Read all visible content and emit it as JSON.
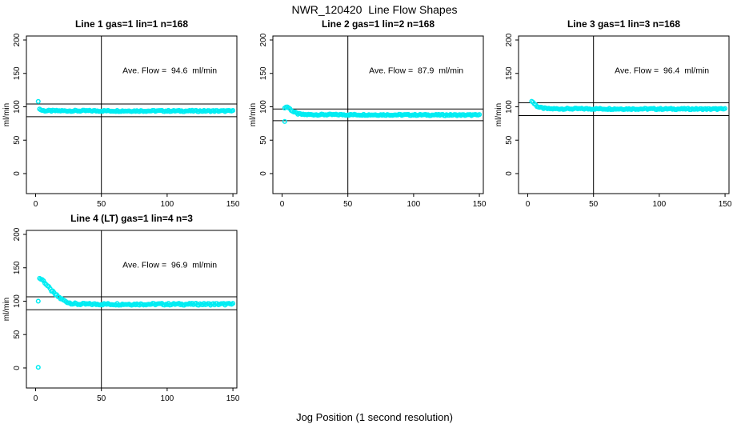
{
  "title": "NWR_120420  Line Flow Shapes",
  "xlabel": "Jog Position (1 second resolution)",
  "colors": {
    "marker": "#00ECF2",
    "axis": "#000000"
  },
  "chart_data": [
    {
      "type": "scatter",
      "title": "Line 1 gas=1 lin=1 n=168",
      "annotation": "Ave. Flow =  94.6  ml/min",
      "ave_flow_ml_min": 94.6,
      "ylabel": "ml/min",
      "xticks": [
        0,
        50,
        100,
        150
      ],
      "yticks": [
        0,
        50,
        100,
        150,
        200
      ],
      "xlim": [
        -7,
        153
      ],
      "ylim": [
        -30,
        206
      ],
      "vline_x": 50,
      "hlines": [
        104.1,
        85.1
      ],
      "outliers": [
        [
          2,
          108
        ]
      ],
      "curve": [
        [
          3,
          96.5
        ],
        [
          5,
          94.5
        ],
        [
          8,
          94
        ],
        [
          150,
          93.7
        ]
      ],
      "x_end": 150,
      "noise": 1.0
    },
    {
      "type": "scatter",
      "title": "Line 2 gas=1 lin=2 n=168",
      "annotation": "Ave. Flow =  87.9  ml/min",
      "ave_flow_ml_min": 87.9,
      "ylabel": "ml/min",
      "xticks": [
        0,
        50,
        100,
        150
      ],
      "yticks": [
        0,
        50,
        100,
        150,
        200
      ],
      "xlim": [
        -7,
        153
      ],
      "ylim": [
        -30,
        206
      ],
      "vline_x": 50,
      "hlines": [
        96.7,
        79.1
      ],
      "outliers": [
        [
          2,
          78
        ]
      ],
      "curve": [
        [
          2,
          99
        ],
        [
          4,
          100
        ],
        [
          5,
          98.5
        ],
        [
          7,
          95
        ],
        [
          9,
          92
        ],
        [
          12,
          89.5
        ],
        [
          16,
          88.3
        ],
        [
          150,
          87.6
        ]
      ],
      "x_end": 150,
      "noise": 1.0
    },
    {
      "type": "scatter",
      "title": "Line 3 gas=1 lin=3 n=168",
      "annotation": "Ave. Flow =  96.4  ml/min",
      "ave_flow_ml_min": 96.4,
      "ylabel": "ml/min",
      "xticks": [
        0,
        50,
        100,
        150
      ],
      "yticks": [
        0,
        50,
        100,
        150,
        200
      ],
      "xlim": [
        -7,
        153
      ],
      "ylim": [
        -30,
        206
      ],
      "vline_x": 50,
      "hlines": [
        106.0,
        86.8
      ],
      "outliers": [],
      "curve": [
        [
          3,
          108
        ],
        [
          4,
          107
        ],
        [
          5,
          104.5
        ],
        [
          7,
          101
        ],
        [
          9,
          99
        ],
        [
          12,
          97.8
        ],
        [
          16,
          97
        ],
        [
          150,
          96.6
        ]
      ],
      "x_end": 150,
      "noise": 1.0
    },
    {
      "type": "scatter",
      "title": "Line 4 (LT) gas=1 lin=4 n=3",
      "annotation": "Ave. Flow =  96.9  ml/min",
      "ave_flow_ml_min": 96.9,
      "ylabel": "ml/min",
      "xticks": [
        0,
        50,
        100,
        150
      ],
      "yticks": [
        0,
        50,
        100,
        150,
        200
      ],
      "xlim": [
        -7,
        153
      ],
      "ylim": [
        -30,
        206
      ],
      "vline_x": 50,
      "hlines": [
        106.6,
        87.2
      ],
      "outliers": [
        [
          2,
          100
        ],
        [
          2,
          1
        ]
      ],
      "curve": [
        [
          3,
          134
        ],
        [
          5,
          132.5
        ],
        [
          7,
          128
        ],
        [
          9,
          123
        ],
        [
          11,
          118
        ],
        [
          13,
          114
        ],
        [
          15,
          110
        ],
        [
          17,
          107
        ],
        [
          19,
          104
        ],
        [
          22,
          100.5
        ],
        [
          25,
          98
        ],
        [
          28,
          96.5
        ],
        [
          32,
          95.5
        ],
        [
          150,
          95.5
        ]
      ],
      "x_end": 150,
      "noise": 1.5
    }
  ]
}
